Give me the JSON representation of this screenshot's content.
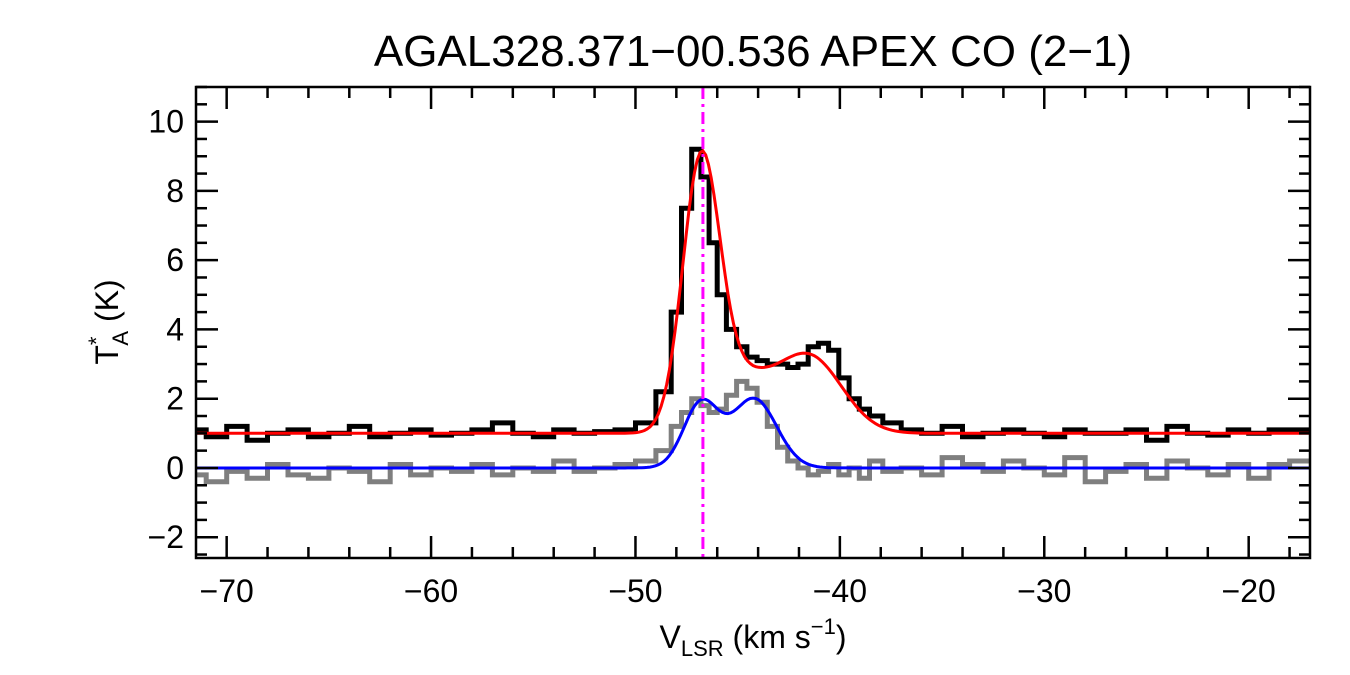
{
  "chart_data": {
    "type": "line",
    "title": "AGAL328.371−00.536  APEX CO (2−1)",
    "xlabel": {
      "main": "V",
      "sub": "LSR",
      "unit": " (km s",
      "sup": "−1",
      "close": ")"
    },
    "ylabel": {
      "main": "T",
      "sup": "*",
      "sub": "A",
      "unit": " (K)"
    },
    "xlim": [
      -71.5,
      -17
    ],
    "ylim": [
      -2.6,
      11
    ],
    "xticks": [
      -70,
      -60,
      -50,
      -40,
      -30,
      -20
    ],
    "xtick_labels": [
      "−70",
      "−60",
      "−50",
      "−40",
      "−30",
      "−20"
    ],
    "yticks": [
      -2,
      0,
      2,
      4,
      6,
      8,
      10
    ],
    "ytick_labels": [
      "−2",
      "0",
      "2",
      "4",
      "6",
      "8",
      "10"
    ],
    "minor_x_step": 2,
    "minor_y_step": 0.5,
    "grid": false,
    "vline": {
      "x": -46.7,
      "color": "#ff00ff",
      "style": "dash-dot"
    },
    "series": [
      {
        "kind": "spectrum-histogram",
        "color": "#000000",
        "x": [
          -71.5,
          -70.5,
          -69.5,
          -68.5,
          -67.5,
          -66.5,
          -65.5,
          -64.5,
          -63.5,
          -62.5,
          -61.5,
          -60.5,
          -59.5,
          -58.5,
          -57.5,
          -56.5,
          -55.5,
          -54.5,
          -53.5,
          -52.5,
          -51.5,
          -50.5,
          -49.5,
          -48.5,
          -48.0,
          -47.5,
          -47.0,
          -46.6,
          -46.2,
          -45.8,
          -45.3,
          -44.8,
          -44.3,
          -43.8,
          -43.3,
          -42.8,
          -42.3,
          -41.8,
          -41.3,
          -40.8,
          -40.3,
          -39.8,
          -39.3,
          -38.8,
          -38.3,
          -37.5,
          -36.5,
          -35.5,
          -34.5,
          -33.5,
          -32.5,
          -31.5,
          -30.5,
          -29.5,
          -28.5,
          -27.5,
          -26.5,
          -25.5,
          -24.5,
          -23.5,
          -22.5,
          -21.5,
          -20.5,
          -19.5,
          -18.5,
          -17.5
        ],
        "y": [
          1.1,
          0.9,
          1.2,
          0.8,
          1.0,
          1.1,
          0.9,
          1.0,
          1.2,
          0.9,
          1.0,
          1.1,
          0.95,
          1.0,
          1.1,
          1.3,
          1.0,
          0.9,
          1.1,
          1.0,
          1.05,
          1.1,
          1.3,
          2.2,
          4.5,
          7.5,
          9.2,
          8.4,
          6.5,
          5.0,
          4.0,
          3.5,
          3.2,
          3.1,
          3.0,
          3.0,
          2.9,
          3.0,
          3.5,
          3.6,
          3.4,
          2.6,
          2.0,
          1.7,
          1.5,
          1.3,
          1.1,
          1.0,
          1.2,
          0.9,
          1.0,
          1.1,
          1.0,
          0.9,
          1.1,
          1.0,
          1.0,
          1.1,
          0.8,
          1.2,
          1.0,
          0.95,
          1.1,
          1.0,
          1.1,
          1.1
        ]
      },
      {
        "kind": "spectrum-histogram",
        "color": "#7f7f7f",
        "x": [
          -71.5,
          -70.5,
          -69.5,
          -68.5,
          -67.5,
          -66.5,
          -65.5,
          -64.5,
          -63.5,
          -62.5,
          -61.5,
          -60.5,
          -59.5,
          -58.5,
          -57.5,
          -56.5,
          -55.5,
          -54.5,
          -53.5,
          -52.5,
          -51.5,
          -50.5,
          -49.5,
          -48.5,
          -48.0,
          -47.5,
          -47.0,
          -46.6,
          -46.2,
          -45.8,
          -45.3,
          -44.8,
          -44.3,
          -43.8,
          -43.3,
          -42.8,
          -42.3,
          -41.8,
          -41.3,
          -40.8,
          -40.3,
          -39.8,
          -39.3,
          -38.8,
          -38.3,
          -37.5,
          -36.5,
          -35.5,
          -34.5,
          -33.5,
          -32.5,
          -31.5,
          -30.5,
          -29.5,
          -28.5,
          -27.5,
          -26.5,
          -25.5,
          -24.5,
          -23.5,
          -22.5,
          -21.5,
          -20.5,
          -19.5,
          -18.5,
          -17.5
        ],
        "y": [
          -0.2,
          -0.4,
          -0.1,
          -0.3,
          0.1,
          -0.2,
          -0.3,
          0.0,
          -0.1,
          -0.4,
          0.1,
          -0.2,
          0.0,
          -0.1,
          0.1,
          -0.2,
          0.0,
          -0.1,
          0.2,
          -0.1,
          0.0,
          0.1,
          0.2,
          0.5,
          1.2,
          1.6,
          2.0,
          1.8,
          1.6,
          1.7,
          2.1,
          2.5,
          2.3,
          1.9,
          1.2,
          0.6,
          0.2,
          0.0,
          -0.2,
          -0.1,
          0.1,
          -0.2,
          0.0,
          -0.3,
          0.2,
          -0.1,
          0.0,
          -0.2,
          0.3,
          0.1,
          -0.1,
          0.2,
          0.0,
          -0.2,
          0.3,
          -0.4,
          -0.1,
          0.1,
          -0.3,
          0.2,
          0.0,
          -0.2,
          0.1,
          -0.3,
          0.1,
          0.2
        ]
      },
      {
        "kind": "gaussian-fit",
        "color": "#ff0000",
        "baseline": 1.0,
        "components": [
          {
            "amp": 7.4,
            "center": -46.8,
            "sigma": 0.9
          },
          {
            "amp": 1.5,
            "center": -45.0,
            "sigma": 1.5
          },
          {
            "amp": 2.2,
            "center": -41.5,
            "sigma": 1.6
          }
        ]
      },
      {
        "kind": "gaussian-fit",
        "color": "#0000ff",
        "baseline": 0.0,
        "components": [
          {
            "amp": 1.85,
            "center": -46.8,
            "sigma": 0.85
          },
          {
            "amp": 2.0,
            "center": -44.2,
            "sigma": 1.1
          }
        ]
      }
    ]
  }
}
